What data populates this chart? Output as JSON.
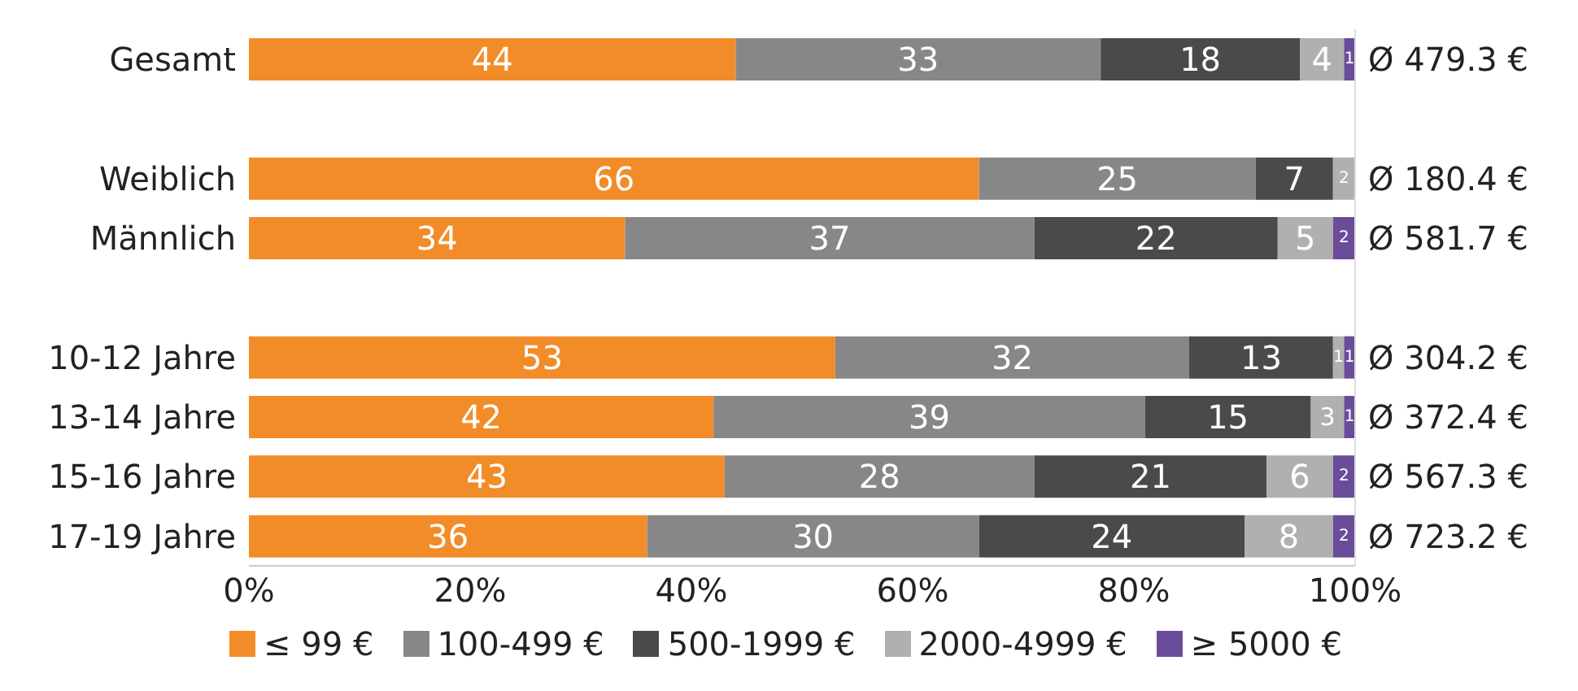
{
  "chart_data": {
    "type": "bar",
    "orientation": "horizontal",
    "stacked": true,
    "data_labels": true,
    "legend": "bottom",
    "categories": [
      "Gesamt",
      null,
      "Weiblich",
      "Männlich",
      null,
      "10-12 Jahre",
      "13-14 Jahre",
      "15-16 Jahre",
      "17-19 Jahre"
    ],
    "series": [
      {
        "name": "≤ 99 €",
        "color": "#f28c28",
        "values": [
          44,
          null,
          66,
          34,
          null,
          53,
          42,
          43,
          36
        ]
      },
      {
        "name": "100-499 €",
        "color": "#878787",
        "values": [
          33,
          null,
          25,
          37,
          null,
          32,
          39,
          28,
          30
        ]
      },
      {
        "name": "500-1999 €",
        "color": "#4a4a4a",
        "values": [
          18,
          null,
          7,
          22,
          null,
          13,
          15,
          21,
          24
        ]
      },
      {
        "name": "2000-4999 €",
        "color": "#b0b0b0",
        "values": [
          4,
          null,
          2,
          5,
          null,
          1,
          3,
          6,
          8
        ]
      },
      {
        "name": "≥ 5000 €",
        "color": "#6b4c9a",
        "values": [
          1,
          null,
          null,
          2,
          null,
          1,
          1,
          2,
          2
        ]
      }
    ],
    "xlim": [
      0,
      100
    ],
    "xticks": [
      {
        "value": 0,
        "label": "0%"
      },
      {
        "value": 20,
        "label": "20%"
      },
      {
        "value": 40,
        "label": "40%"
      },
      {
        "value": 60,
        "label": "60%"
      },
      {
        "value": 80,
        "label": "80%"
      },
      {
        "value": 100,
        "label": "100%"
      }
    ],
    "annotations": [
      "Ø 479.3 €",
      "Ø 180.4 €",
      "Ø 581.7 €",
      "Ø 304.2 €",
      "Ø 372.4 €",
      "Ø 567.3 €",
      "Ø 723.2 €"
    ]
  }
}
